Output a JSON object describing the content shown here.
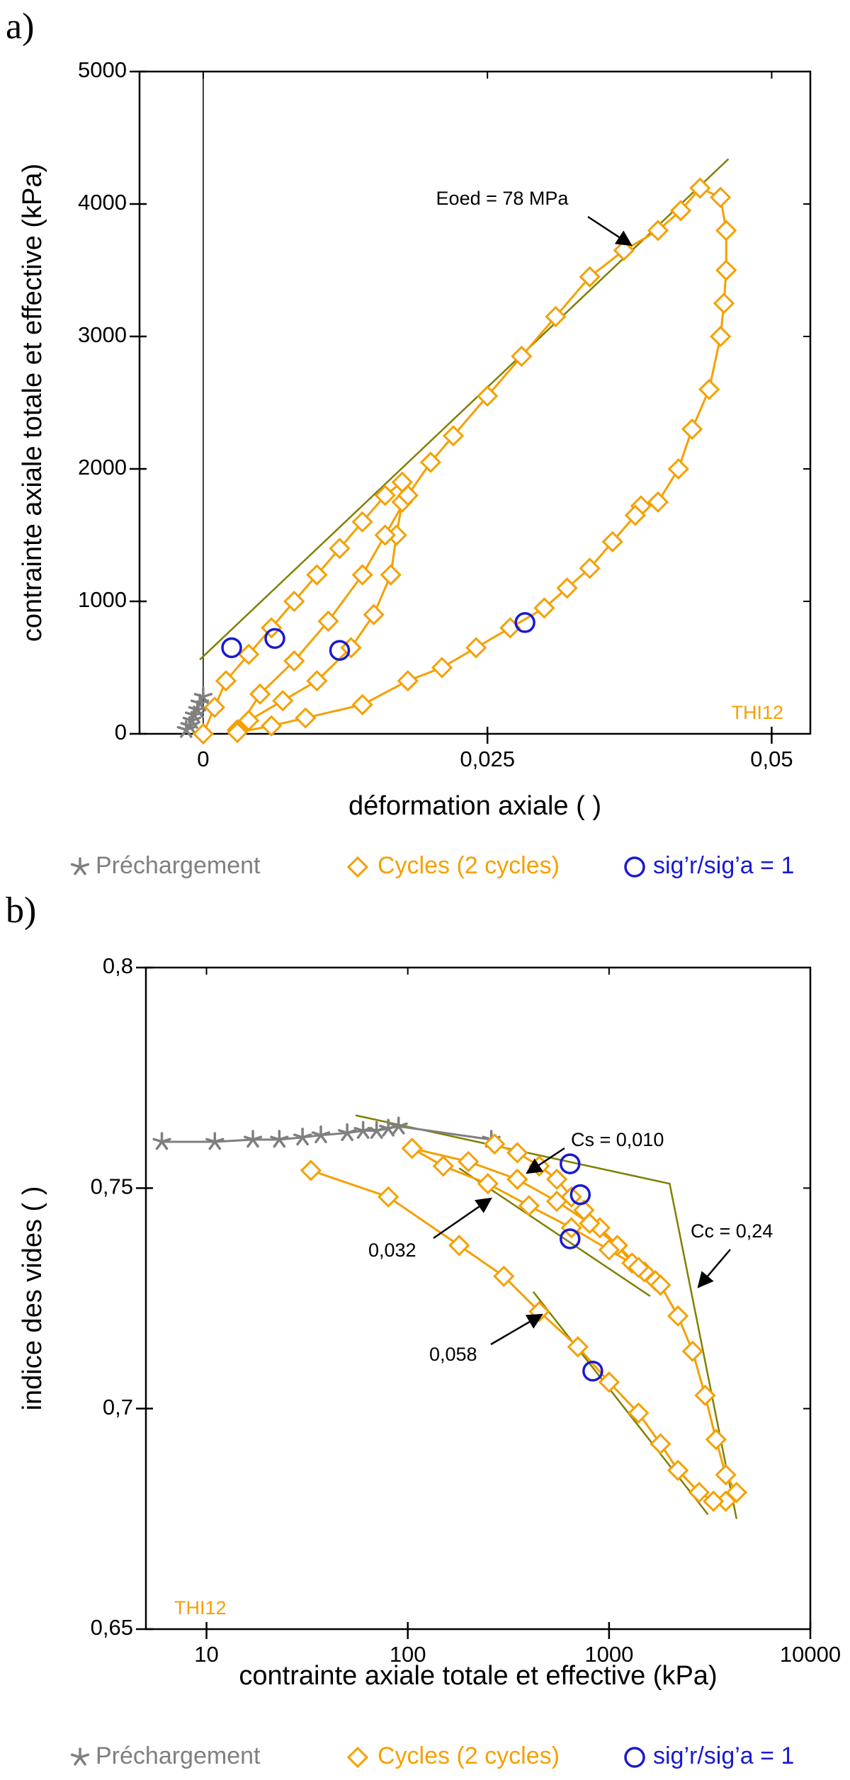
{
  "chart_data": [
    {
      "type": "line",
      "label": "a)",
      "x_label": "déformation axiale ( )",
      "y_label": "contrainte axiale totale et effective (kPa)",
      "sample_label": "THI12",
      "sample_color": "#f5a000",
      "log_x": false,
      "xlim": [
        -0.0056,
        0.0534
      ],
      "ylim": [
        0,
        5000
      ],
      "xticks": [
        0,
        {
          "value": 0.025,
          "label": "0,025"
        },
        {
          "value": 0.05,
          "label": "0,05"
        }
      ],
      "yticks": [
        0,
        1000,
        2000,
        3000,
        4000,
        5000
      ],
      "zero_line": true,
      "legend": "bottom",
      "series": [
        {
          "name": "Préchargement",
          "color": "#7f7f7f",
          "marker": "star",
          "line": true,
          "x": [
            -0.0015,
            -0.0012,
            -0.001,
            -0.0008,
            -0.0005,
            -0.0003,
            0
          ],
          "values": [
            30,
            60,
            100,
            140,
            180,
            230,
            280
          ]
        },
        {
          "name": "Cycles  (2 cycles)",
          "color": "#f5a000",
          "marker": "diamond",
          "line": true,
          "x": [
            0,
            0.001,
            0.002,
            0.004,
            0.006,
            0.008,
            0.01,
            0.012,
            0.014,
            0.016,
            0.0175,
            0.0175,
            0.017,
            0.0165,
            0.015,
            0.013,
            0.01,
            0.007,
            0.004,
            0.003,
            0.005,
            0.008,
            0.011,
            0.014,
            0.016,
            0.018,
            0.02,
            0.022,
            0.025,
            0.028,
            0.031,
            0.034,
            0.037,
            0.04,
            0.042,
            0.0437,
            0.0455,
            0.046,
            0.046,
            0.0458,
            0.0455,
            0.0445,
            0.043,
            0.0418,
            0.04,
            0.0385,
            0.038,
            0.036,
            0.034,
            0.032,
            0.03,
            0.027,
            0.024,
            0.021,
            0.018,
            0.014,
            0.009,
            0.006,
            0.003
          ],
          "values": [
            0,
            200,
            400,
            600,
            800,
            1000,
            1200,
            1400,
            1600,
            1800,
            1900,
            1750,
            1500,
            1200,
            900,
            650,
            400,
            250,
            100,
            30,
            300,
            550,
            850,
            1200,
            1500,
            1800,
            2050,
            2250,
            2550,
            2850,
            3150,
            3450,
            3650,
            3800,
            3950,
            4120,
            4050,
            3800,
            3500,
            3250,
            3000,
            2600,
            2300,
            2000,
            1750,
            1720,
            1650,
            1450,
            1250,
            1100,
            950,
            800,
            650,
            500,
            400,
            220,
            120,
            60,
            10
          ]
        },
        {
          "name": "sig’r/sig’a = 1",
          "color": "#1a1ad0",
          "marker": "circle",
          "line": false,
          "x": [
            0.0025,
            0.0063,
            0.012,
            0.0283
          ],
          "values": [
            650,
            720,
            630,
            840
          ]
        }
      ],
      "trend_lines": [
        {
          "color": "#808000",
          "x": [
            -0.0003,
            0.0462
          ],
          "y": [
            560,
            4340
          ]
        }
      ],
      "annotations": [
        {
          "text": "Eoed = 78 MPa"
        }
      ]
    },
    {
      "type": "line",
      "label": "b)",
      "x_label": "contrainte axiale totale et effective (kPa)",
      "y_label": "indice des vides ( )",
      "sample_label": "THI12",
      "sample_color": "#f5a000",
      "log_x": true,
      "xlim": [
        5,
        10000
      ],
      "ylim": [
        0.65,
        0.8
      ],
      "xticks": [
        10,
        100,
        1000,
        10000
      ],
      "yticks": [
        {
          "value": 0.65,
          "label": "0,65"
        },
        {
          "value": 0.7,
          "label": "0,7"
        },
        {
          "value": 0.75,
          "label": "0,75"
        },
        {
          "value": 0.8,
          "label": "0,8"
        }
      ],
      "zero_line": false,
      "legend": "bottom",
      "series": [
        {
          "name": "Préchargement",
          "color": "#7f7f7f",
          "marker": "star",
          "line": true,
          "x": [
            6,
            11,
            17,
            23,
            30,
            37,
            50,
            60,
            70,
            80,
            90,
            260
          ],
          "values": [
            0.7605,
            0.7605,
            0.761,
            0.761,
            0.7615,
            0.762,
            0.7625,
            0.763,
            0.763,
            0.7635,
            0.764,
            0.761
          ]
        },
        {
          "name": "Cycles  (2 cycles)",
          "color": "#f5a000",
          "marker": "diamond",
          "line": true,
          "x": [
            270,
            350,
            450,
            550,
            650,
            750,
            900,
            1100,
            1300,
            1500,
            1700,
            1500,
            1100,
            800,
            550,
            350,
            200,
            105,
            150,
            250,
            400,
            650,
            1000,
            1400,
            1800,
            2200,
            2600,
            3000,
            3400,
            3800,
            4300,
            3800,
            3300,
            2800,
            2200,
            1800,
            1400,
            1000,
            700,
            450,
            300,
            180,
            80,
            33
          ],
          "values": [
            0.76,
            0.758,
            0.755,
            0.752,
            0.748,
            0.745,
            0.741,
            0.737,
            0.733,
            0.731,
            0.729,
            0.731,
            0.737,
            0.742,
            0.747,
            0.752,
            0.756,
            0.759,
            0.755,
            0.751,
            0.746,
            0.741,
            0.736,
            0.732,
            0.728,
            0.721,
            0.713,
            0.703,
            0.693,
            0.685,
            0.681,
            0.679,
            0.679,
            0.681,
            0.686,
            0.692,
            0.699,
            0.706,
            0.714,
            0.722,
            0.73,
            0.737,
            0.748,
            0.754
          ]
        },
        {
          "name": "sig’r/sig’a = 1",
          "color": "#1a1ad0",
          "marker": "circle",
          "line": false,
          "x": [
            640,
            720,
            640,
            830
          ],
          "values": [
            0.7555,
            0.7485,
            0.7385,
            0.7085
          ]
        }
      ],
      "trend_lines": [
        {
          "color": "#808000",
          "x": [
            55,
            2000,
            4300
          ],
          "y": [
            0.7665,
            0.751,
            0.675
          ]
        },
        {
          "color": "#808000",
          "x": [
            180,
            1600
          ],
          "y": [
            0.7545,
            0.7255
          ]
        },
        {
          "color": "#808000",
          "x": [
            420,
            3100
          ],
          "y": [
            0.7265,
            0.676
          ]
        }
      ],
      "annotations": [
        {
          "text": "Cs = 0,010"
        },
        {
          "text": "Cc = 0,24"
        },
        {
          "text": "0,032"
        },
        {
          "text": "0,058"
        }
      ]
    }
  ]
}
